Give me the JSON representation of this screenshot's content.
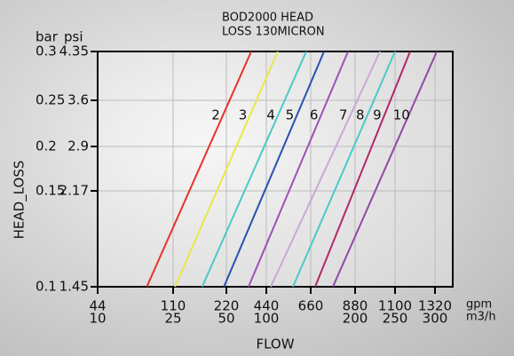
{
  "chart_data": {
    "type": "line",
    "title_lines": [
      "BOD2000 HEAD",
      "LOSS 130MICRON"
    ],
    "y_label": "HEAD_LOSS",
    "x_label": "FLOW",
    "y_units": [
      "bar",
      "psi"
    ],
    "x_units": [
      "gpm",
      "m3/h"
    ],
    "yticks": [
      0.1,
      0.15,
      0.2,
      0.25,
      0.3
    ],
    "yticks_psi": [
      1.45,
      2.17,
      2.9,
      3.6,
      4.35
    ],
    "xticks": [
      44,
      110,
      220,
      440,
      660,
      880,
      1100,
      1320
    ],
    "xticks_m3h": [
      10,
      25,
      50,
      100,
      null,
      200,
      250,
      300
    ],
    "y": [
      0.1,
      0.3
    ],
    "grid": true,
    "series": [
      {
        "name": "2",
        "color": "#e8322a",
        "values": [
          87,
          357
        ]
      },
      {
        "name": "3",
        "color": "#e8e84a",
        "values": [
          114,
          497
        ]
      },
      {
        "name": "4",
        "color": "#4cc8cc",
        "values": [
          170,
          638
        ]
      },
      {
        "name": "5",
        "color": "#2a50b0",
        "values": [
          215,
          726
        ]
      },
      {
        "name": "6",
        "color": "#a050b8",
        "values": [
          342,
          845
        ]
      },
      {
        "name": "7",
        "color": "#c8a8d8",
        "values": [
          462,
          1017
        ]
      },
      {
        "name": "8",
        "color": "#4cc8cc",
        "values": [
          572,
          1100
        ]
      },
      {
        "name": "9",
        "color": "#b02868",
        "values": [
          682,
          1183
        ]
      },
      {
        "name": "10",
        "color": "#9048a8",
        "values": [
          770,
          1330
        ]
      }
    ]
  }
}
